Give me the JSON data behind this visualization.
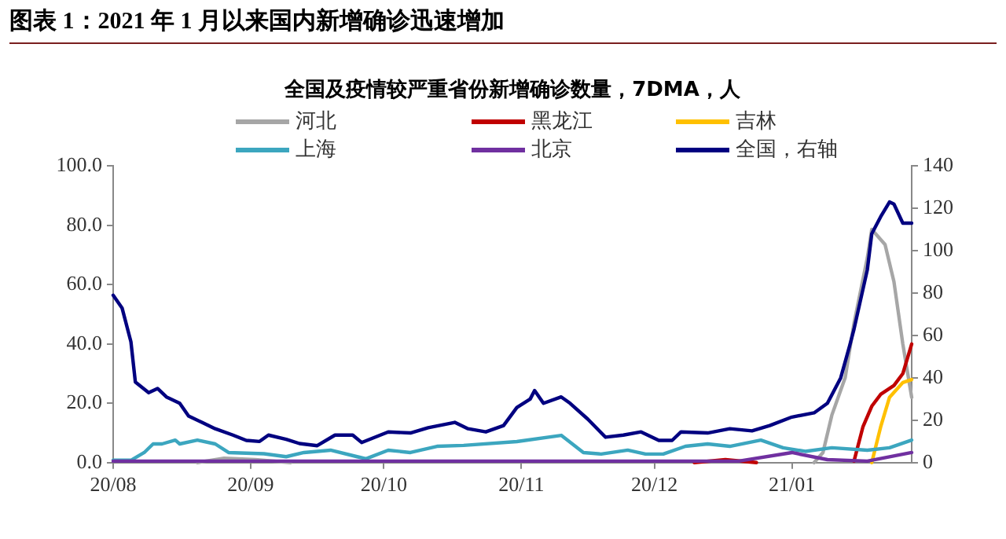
{
  "chart_data": {
    "type": "line",
    "title": "图表 1：2021 年 1 月以来国内新增确诊迅速增加",
    "subtitle": "全国及疫情较严重省份新增确诊数量，7DMA，人",
    "xlim": [
      "2020-08-01",
      "2021-01-28"
    ],
    "xticks": [
      {
        "value": "2020-08-01",
        "label": "20/08"
      },
      {
        "value": "2020-09-01",
        "label": "20/09"
      },
      {
        "value": "2020-10-01",
        "label": "20/10"
      },
      {
        "value": "2020-11-01",
        "label": "20/11"
      },
      {
        "value": "2020-12-01",
        "label": "20/12"
      },
      {
        "value": "2021-01-01",
        "label": "21/01"
      }
    ],
    "ylim": [
      0,
      100
    ],
    "yticks": [
      {
        "value": 0,
        "label": "0.0"
      },
      {
        "value": 20,
        "label": "20.0"
      },
      {
        "value": 40,
        "label": "40.0"
      },
      {
        "value": 60,
        "label": "60.0"
      },
      {
        "value": 80,
        "label": "80.0"
      },
      {
        "value": 100,
        "label": "100.0"
      }
    ],
    "y2lim": [
      0,
      140
    ],
    "y2ticks": [
      0,
      20,
      40,
      60,
      80,
      100,
      120,
      140
    ],
    "grid": false,
    "legend": "top",
    "marker": "none",
    "line_style": "solid",
    "series": [
      {
        "name": "河北",
        "color": "#a6a6a6",
        "x": [
          "2020-08-20",
          "2020-08-26",
          "2020-09-02",
          "2020-09-10",
          "2020-12-01",
          "2021-01-06",
          "2021-01-08",
          "2021-01-10",
          "2021-01-13",
          "2021-01-15",
          "2021-01-18",
          "2021-01-19",
          "2021-01-22",
          "2021-01-24",
          "2021-01-26",
          "2021-01-28"
        ],
        "values": [
          0,
          1.5,
          1,
          0,
          null,
          0,
          3.4,
          16,
          28.6,
          47,
          69,
          78.6,
          73.5,
          61,
          40,
          22
        ]
      },
      {
        "name": "黑龙江",
        "color": "#c00000",
        "x": [
          "2020-12-10",
          "2020-12-17",
          "2020-12-24",
          "2021-01-01",
          "2021-01-15",
          "2021-01-17",
          "2021-01-19",
          "2021-01-21",
          "2021-01-24",
          "2021-01-26",
          "2021-01-28"
        ],
        "values": [
          0,
          1,
          0,
          null,
          0.5,
          12,
          19,
          23,
          26,
          30,
          40
        ]
      },
      {
        "name": "吉林",
        "color": "#ffc000",
        "x": [
          "2021-01-19",
          "2021-01-21",
          "2021-01-23",
          "2021-01-26",
          "2021-01-28"
        ],
        "values": [
          0,
          12,
          22,
          27,
          28
        ]
      },
      {
        "name": "上海",
        "color": "#3ca6bf",
        "x": [
          "2020-08-01",
          "2020-08-05",
          "2020-08-08",
          "2020-08-10",
          "2020-08-12",
          "2020-08-15",
          "2020-08-16",
          "2020-08-20",
          "2020-08-24",
          "2020-08-27",
          "2020-09-04",
          "2020-09-09",
          "2020-09-13",
          "2020-09-19",
          "2020-09-25",
          "2020-09-27",
          "2020-10-02",
          "2020-10-07",
          "2020-10-13",
          "2020-10-19",
          "2020-10-31",
          "2020-11-10",
          "2020-11-15",
          "2020-11-19",
          "2020-11-25",
          "2020-11-29",
          "2020-12-03",
          "2020-12-08",
          "2020-12-13",
          "2020-12-18",
          "2020-12-25",
          "2020-12-30",
          "2021-01-04",
          "2021-01-10",
          "2021-01-18",
          "2021-01-23",
          "2021-01-28"
        ],
        "values": [
          0.8,
          0.8,
          3.4,
          6.3,
          6.3,
          7.6,
          6.3,
          7.6,
          6.3,
          3.4,
          3,
          2,
          3.4,
          4.2,
          2,
          1.3,
          4.2,
          3.4,
          5.5,
          5.8,
          7.1,
          9.2,
          3.4,
          2.9,
          4.2,
          2.9,
          2.9,
          5.5,
          6.3,
          5.5,
          7.6,
          5,
          3.8,
          5,
          4.2,
          5,
          7.6
        ]
      },
      {
        "name": "北京",
        "color": "#7030a0",
        "x": [
          "2020-08-01",
          "2020-12-20",
          "2021-01-01",
          "2021-01-09",
          "2021-01-18",
          "2021-01-28"
        ],
        "values": [
          0.5,
          0.5,
          3.4,
          1,
          0.5,
          3.4
        ]
      },
      {
        "name": "全国，右轴",
        "color": "#000080",
        "axis": "y2",
        "x": [
          "2020-08-01",
          "2020-08-03",
          "2020-08-05",
          "2020-08-06",
          "2020-08-09",
          "2020-08-11",
          "2020-08-13",
          "2020-08-16",
          "2020-08-18",
          "2020-08-21",
          "2020-08-24",
          "2020-08-28",
          "2020-08-31",
          "2020-09-03",
          "2020-09-05",
          "2020-09-09",
          "2020-09-12",
          "2020-09-16",
          "2020-09-20",
          "2020-09-24",
          "2020-09-26",
          "2020-09-29",
          "2020-10-02",
          "2020-10-07",
          "2020-10-11",
          "2020-10-17",
          "2020-10-20",
          "2020-10-24",
          "2020-10-28",
          "2020-10-31",
          "2020-11-03",
          "2020-11-04",
          "2020-11-06",
          "2020-11-10",
          "2020-11-12",
          "2020-11-16",
          "2020-11-20",
          "2020-11-24",
          "2020-11-28",
          "2020-12-02",
          "2020-12-05",
          "2020-12-07",
          "2020-12-13",
          "2020-12-18",
          "2020-12-23",
          "2020-12-27",
          "2021-01-01",
          "2021-01-06",
          "2021-01-09",
          "2021-01-12",
          "2021-01-14",
          "2021-01-15",
          "2021-01-18",
          "2021-01-19",
          "2021-01-21",
          "2021-01-23",
          "2021-01-24",
          "2021-01-26",
          "2021-01-28"
        ],
        "values": [
          79,
          73,
          57,
          38,
          33,
          35,
          31,
          28,
          22,
          19,
          16,
          13,
          10.5,
          10,
          13,
          11,
          9,
          8,
          13,
          13,
          9.5,
          12,
          14.5,
          14,
          16.5,
          19,
          16,
          14.5,
          17.5,
          26,
          30,
          34,
          28,
          31,
          28,
          20.5,
          12,
          13,
          14.5,
          10.5,
          10.5,
          14.5,
          14,
          16,
          15,
          17.5,
          21.5,
          23.5,
          28,
          40,
          55,
          63,
          91,
          108,
          116,
          123,
          122,
          113,
          113
        ]
      }
    ]
  }
}
